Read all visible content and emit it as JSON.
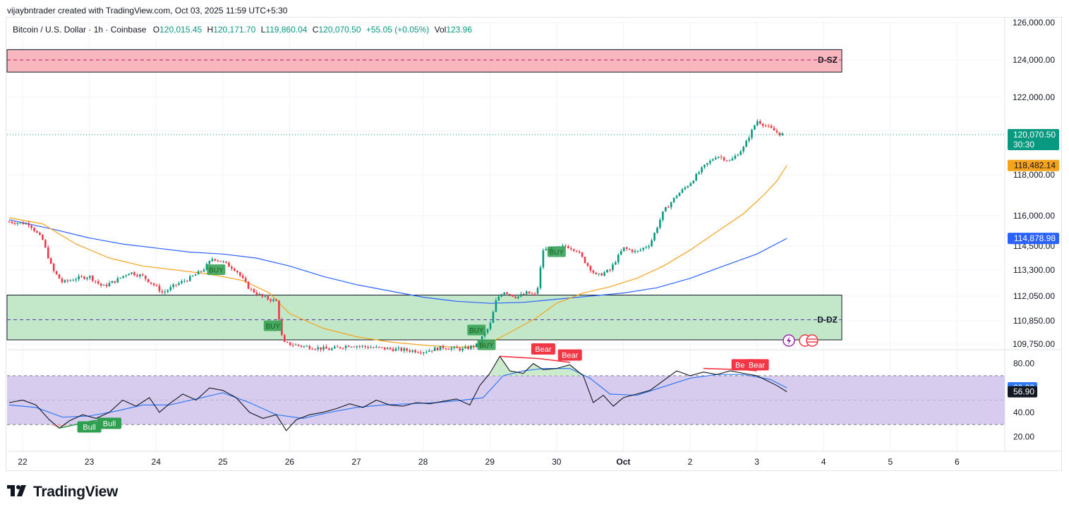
{
  "header": {
    "caption": "vijaybntrader created with TradingView.com, Oct 03, 2025 11:59 UTC+5:30"
  },
  "legend": {
    "symbol": "Bitcoin / U.S. Dollar · 1h · Coinbase",
    "open_key": "O",
    "open": "120,015.45",
    "high_key": "H",
    "high": "120,171.70",
    "low_key": "L",
    "low": "119,860.04",
    "close_key": "C",
    "close": "120,070.50",
    "change": "+55.05 (+0.05%)",
    "vol_key": "Vol",
    "vol": "123.96"
  },
  "footer": {
    "brand": "TradingView"
  },
  "colors": {
    "up": "#089981",
    "down": "#f23645",
    "ema_fast": "#f7a21b",
    "ema_slow": "#2962ff",
    "supply_zone": "#f7a9b4",
    "demand_zone": "#b9e4c0",
    "rsi_band": "#d3c6ec",
    "rsi_line": "#131722",
    "rsi_ma": "#3179f5",
    "signal_buy": "#2e9e4f",
    "signal_bear": "#f23645"
  },
  "chart_data": [
    {
      "type": "candlestick",
      "interval": "1h",
      "x_labels": [
        "22",
        "23",
        "24",
        "25",
        "26",
        "27",
        "28",
        "29",
        "30",
        "Oct",
        "2",
        "3",
        "4",
        "5",
        "6"
      ],
      "price_ticks": [
        {
          "label": "126,000.00",
          "value": 126000
        },
        {
          "label": "124,000.00",
          "value": 124000
        },
        {
          "label": "122,000.00",
          "value": 122000
        },
        {
          "label": "118,000.00",
          "value": 118000
        },
        {
          "label": "116,000.00",
          "value": 116000
        },
        {
          "label": "114,500.00",
          "value": 114500
        },
        {
          "label": "113,300.00",
          "value": 113300
        },
        {
          "label": "112,050.00",
          "value": 112050
        },
        {
          "label": "110,850.00",
          "value": 110850
        },
        {
          "label": "109,750.00",
          "value": 109750
        }
      ],
      "last_price": {
        "label": "120,070.50",
        "countdown": "30:30",
        "value": 120070.5
      },
      "ema_fast_label": {
        "label": "118,482.14",
        "value": 118482.14
      },
      "ema_slow_label": {
        "label": "114,878.98",
        "value": 114878.98
      },
      "zones": [
        {
          "name": "D-SZ",
          "top": 124550,
          "bottom": 123350,
          "mid": 124000,
          "from_day": 21.8,
          "to_day": 3.88
        },
        {
          "name": "D-DZ",
          "top": 112100,
          "bottom": 109950,
          "mid": 110900,
          "from_day": 21.8,
          "to_day": 3.88
        }
      ],
      "price_path": [
        [
          21.8,
          115700
        ],
        [
          22.1,
          115600
        ],
        [
          22.2,
          115200
        ],
        [
          22.3,
          114800
        ],
        [
          22.45,
          113300
        ],
        [
          22.6,
          112700
        ],
        [
          22.8,
          112900
        ],
        [
          23.0,
          113000
        ],
        [
          23.2,
          112500
        ],
        [
          23.4,
          112800
        ],
        [
          23.6,
          113200
        ],
        [
          23.8,
          113000
        ],
        [
          24.0,
          112500
        ],
        [
          24.1,
          112200
        ],
        [
          24.3,
          112600
        ],
        [
          24.5,
          112900
        ],
        [
          24.7,
          113300
        ],
        [
          24.85,
          113900
        ],
        [
          25.0,
          113700
        ],
        [
          25.2,
          113300
        ],
        [
          25.4,
          112400
        ],
        [
          25.6,
          112000
        ],
        [
          25.8,
          111800
        ],
        [
          25.9,
          109800
        ],
        [
          26.2,
          109650
        ],
        [
          26.6,
          109500
        ],
        [
          26.9,
          109700
        ],
        [
          27.2,
          109600
        ],
        [
          27.6,
          109500
        ],
        [
          28.0,
          109400
        ],
        [
          28.3,
          109600
        ],
        [
          28.6,
          109500
        ],
        [
          28.8,
          109700
        ],
        [
          29.0,
          110600
        ],
        [
          29.1,
          111900
        ],
        [
          29.2,
          112300
        ],
        [
          29.4,
          112000
        ],
        [
          29.55,
          112200
        ],
        [
          29.7,
          112100
        ],
        [
          29.8,
          114300
        ],
        [
          30.0,
          114400
        ],
        [
          30.15,
          114500
        ],
        [
          30.3,
          114300
        ],
        [
          30.45,
          113600
        ],
        [
          30.6,
          113000
        ],
        [
          30.8,
          113300
        ],
        [
          31.0,
          114400
        ],
        [
          31.2,
          114200
        ],
        [
          31.4,
          114600
        ],
        [
          31.6,
          116200
        ],
        [
          31.8,
          117000
        ],
        [
          32.0,
          117600
        ],
        [
          32.2,
          118400
        ],
        [
          32.4,
          119000
        ],
        [
          32.6,
          118700
        ],
        [
          32.8,
          119400
        ],
        [
          33.0,
          120800
        ],
        [
          33.2,
          120400
        ],
        [
          33.35,
          120100
        ],
        [
          33.42,
          120070
        ]
      ],
      "ema_fast_path": [
        [
          21.8,
          115900
        ],
        [
          22.3,
          115600
        ],
        [
          22.8,
          114600
        ],
        [
          23.3,
          113900
        ],
        [
          23.8,
          113500
        ],
        [
          24.3,
          113300
        ],
        [
          24.8,
          113100
        ],
        [
          25.3,
          112800
        ],
        [
          25.7,
          112200
        ],
        [
          26.0,
          111200
        ],
        [
          26.5,
          110500
        ],
        [
          27.0,
          110100
        ],
        [
          27.5,
          109850
        ],
        [
          28.0,
          109700
        ],
        [
          28.5,
          109600
        ],
        [
          28.9,
          109650
        ],
        [
          29.3,
          110300
        ],
        [
          29.7,
          111000
        ],
        [
          30.0,
          111700
        ],
        [
          30.4,
          112200
        ],
        [
          30.8,
          112500
        ],
        [
          31.2,
          112900
        ],
        [
          31.6,
          113500
        ],
        [
          32.0,
          114300
        ],
        [
          32.4,
          115200
        ],
        [
          32.8,
          116100
        ],
        [
          33.1,
          117000
        ],
        [
          33.3,
          117700
        ],
        [
          33.45,
          118482
        ]
      ],
      "ema_slow_path": [
        [
          21.8,
          115800
        ],
        [
          22.5,
          115300
        ],
        [
          23.0,
          114900
        ],
        [
          23.5,
          114600
        ],
        [
          24.0,
          114400
        ],
        [
          24.5,
          114200
        ],
        [
          25.0,
          114100
        ],
        [
          25.5,
          113900
        ],
        [
          26.0,
          113500
        ],
        [
          26.5,
          113000
        ],
        [
          27.0,
          112600
        ],
        [
          27.5,
          112300
        ],
        [
          28.0,
          112000
        ],
        [
          28.5,
          111800
        ],
        [
          29.0,
          111700
        ],
        [
          29.5,
          111750
        ],
        [
          30.0,
          111900
        ],
        [
          30.5,
          112050
        ],
        [
          31.0,
          112200
        ],
        [
          31.5,
          112450
        ],
        [
          32.0,
          112900
        ],
        [
          32.5,
          113500
        ],
        [
          33.0,
          114100
        ],
        [
          33.45,
          114879
        ]
      ],
      "signals": [
        {
          "label": "BUY",
          "day": 24.9,
          "price": 113300
        },
        {
          "label": "BUY",
          "day": 25.75,
          "price": 110600
        },
        {
          "label": "BUY",
          "day": 28.8,
          "price": 110400
        },
        {
          "label": "BUY",
          "day": 28.95,
          "price": 109700
        },
        {
          "label": "BUY",
          "day": 30.0,
          "price": 114200
        }
      ]
    },
    {
      "type": "line",
      "name": "RSI",
      "y_ticks": [
        {
          "label": "80.00",
          "value": 80
        },
        {
          "label": "40.00",
          "value": 40
        },
        {
          "label": "20.00",
          "value": 20
        }
      ],
      "band": [
        30,
        70
      ],
      "midline": 50,
      "ylim": [
        15,
        85
      ],
      "rsi_value": {
        "label": "56.90",
        "value": 56.9
      },
      "rsi_ma_value": {
        "label": "60.09",
        "value": 60.09
      },
      "rsi_path": [
        [
          21.8,
          48
        ],
        [
          22.0,
          50
        ],
        [
          22.2,
          46
        ],
        [
          22.4,
          34
        ],
        [
          22.55,
          27
        ],
        [
          22.7,
          33
        ],
        [
          22.9,
          38
        ],
        [
          23.1,
          35
        ],
        [
          23.3,
          40
        ],
        [
          23.5,
          50
        ],
        [
          23.7,
          45
        ],
        [
          23.9,
          52
        ],
        [
          24.05,
          40
        ],
        [
          24.2,
          47
        ],
        [
          24.4,
          55
        ],
        [
          24.6,
          50
        ],
        [
          24.8,
          60
        ],
        [
          25.0,
          58
        ],
        [
          25.2,
          52
        ],
        [
          25.4,
          40
        ],
        [
          25.6,
          35
        ],
        [
          25.8,
          38
        ],
        [
          25.95,
          25
        ],
        [
          26.1,
          34
        ],
        [
          26.3,
          38
        ],
        [
          26.5,
          40
        ],
        [
          26.7,
          43
        ],
        [
          26.9,
          47
        ],
        [
          27.1,
          44
        ],
        [
          27.3,
          50
        ],
        [
          27.5,
          46
        ],
        [
          27.7,
          45
        ],
        [
          27.9,
          48
        ],
        [
          28.1,
          47
        ],
        [
          28.3,
          49
        ],
        [
          28.5,
          51
        ],
        [
          28.7,
          46
        ],
        [
          28.85,
          62
        ],
        [
          29.0,
          72
        ],
        [
          29.15,
          86
        ],
        [
          29.3,
          74
        ],
        [
          29.5,
          72
        ],
        [
          29.65,
          80
        ],
        [
          29.8,
          75
        ],
        [
          30.0,
          76
        ],
        [
          30.2,
          79
        ],
        [
          30.4,
          70
        ],
        [
          30.55,
          48
        ],
        [
          30.7,
          54
        ],
        [
          30.85,
          45
        ],
        [
          31.0,
          52
        ],
        [
          31.2,
          55
        ],
        [
          31.4,
          58
        ],
        [
          31.6,
          66
        ],
        [
          31.8,
          74
        ],
        [
          32.0,
          70
        ],
        [
          32.2,
          73
        ],
        [
          32.4,
          71
        ],
        [
          32.6,
          74
        ],
        [
          32.8,
          72
        ],
        [
          33.0,
          70
        ],
        [
          33.15,
          66
        ],
        [
          33.3,
          62
        ],
        [
          33.45,
          56.9
        ]
      ],
      "rsi_ma_path": [
        [
          21.8,
          46
        ],
        [
          22.2,
          44
        ],
        [
          22.6,
          36
        ],
        [
          23.0,
          37
        ],
        [
          23.4,
          41
        ],
        [
          23.8,
          46
        ],
        [
          24.2,
          46
        ],
        [
          24.6,
          51
        ],
        [
          25.0,
          56
        ],
        [
          25.4,
          48
        ],
        [
          25.8,
          38
        ],
        [
          26.2,
          35
        ],
        [
          26.6,
          40
        ],
        [
          27.0,
          44
        ],
        [
          27.4,
          46
        ],
        [
          27.8,
          47
        ],
        [
          28.2,
          48
        ],
        [
          28.6,
          50
        ],
        [
          28.9,
          52
        ],
        [
          29.2,
          70
        ],
        [
          29.5,
          74
        ],
        [
          29.8,
          76
        ],
        [
          30.2,
          76
        ],
        [
          30.5,
          68
        ],
        [
          30.8,
          55
        ],
        [
          31.2,
          54
        ],
        [
          31.6,
          61
        ],
        [
          32.0,
          68
        ],
        [
          32.4,
          71
        ],
        [
          32.8,
          71
        ],
        [
          33.2,
          67
        ],
        [
          33.45,
          60.09
        ]
      ],
      "divergences": [
        {
          "label": "Bull",
          "from": [
            22.55,
            27
          ],
          "to": [
            23.05,
            33
          ],
          "tag_day": 23.0,
          "tag_value": 28
        },
        {
          "label": "Bull",
          "from": [
            23.05,
            33
          ],
          "to": [
            23.35,
            35
          ],
          "tag_day": 23.3,
          "tag_value": 31
        },
        {
          "label": "Bear",
          "from": [
            29.15,
            86
          ],
          "to": [
            29.75,
            84
          ],
          "tag_day": 29.8,
          "tag_value": 92
        },
        {
          "label": "Bear",
          "from": [
            29.75,
            84
          ],
          "to": [
            30.2,
            81
          ],
          "tag_day": 30.2,
          "tag_value": 87
        },
        {
          "label": "Bear",
          "from": [
            32.2,
            76
          ],
          "to": [
            32.8,
            75
          ],
          "tag_day": 32.8,
          "tag_value": 79
        },
        {
          "label": "Bear",
          "from": [
            32.8,
            75
          ],
          "to": [
            33.0,
            74
          ],
          "tag_day": 33.0,
          "tag_value": 79
        }
      ]
    }
  ]
}
